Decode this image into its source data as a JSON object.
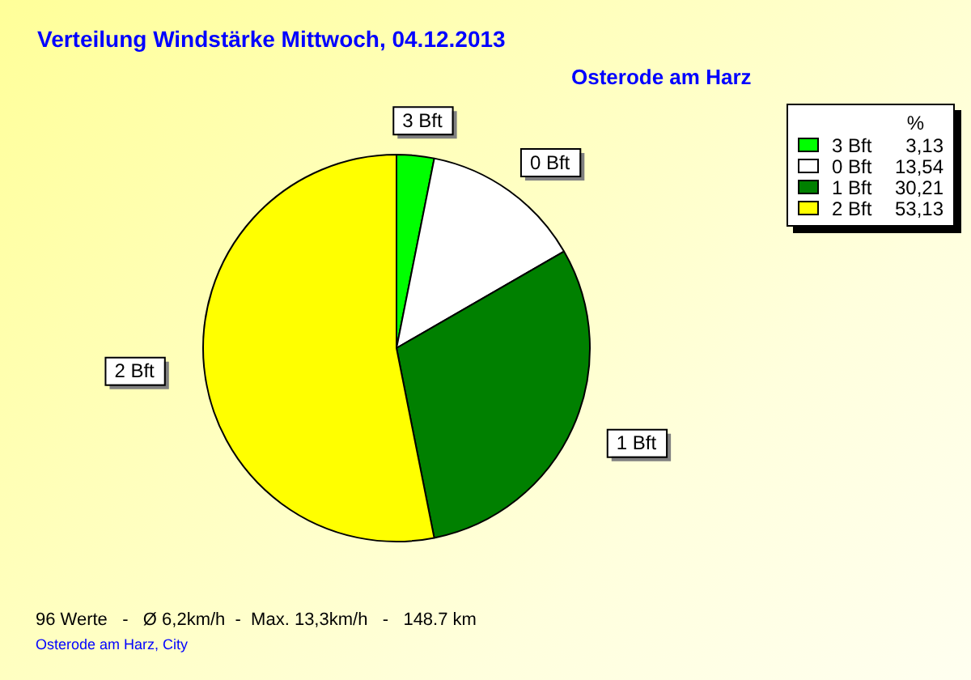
{
  "chart_data": {
    "type": "pie",
    "title": "Verteilung Windstärke  Mittwoch, 04.12.2013",
    "subtitle": "Osterode am Harz",
    "categories": [
      "3 Bft",
      "0 Bft",
      "1 Bft",
      "2 Bft"
    ],
    "values": [
      3.13,
      13.54,
      30.21,
      53.13
    ],
    "value_labels": [
      "3,13",
      "13,54",
      "30,21",
      "53,13"
    ],
    "colors": [
      "#00ff00",
      "#ffffff",
      "#008000",
      "#ffff00"
    ],
    "legend": "top right",
    "legend_title": "%",
    "annotations": [
      "96 Werte   -   Ø 6,2km/h  -  Max. 13,3km/h   -   148.7 km",
      "Osterode am Harz, City"
    ]
  }
}
